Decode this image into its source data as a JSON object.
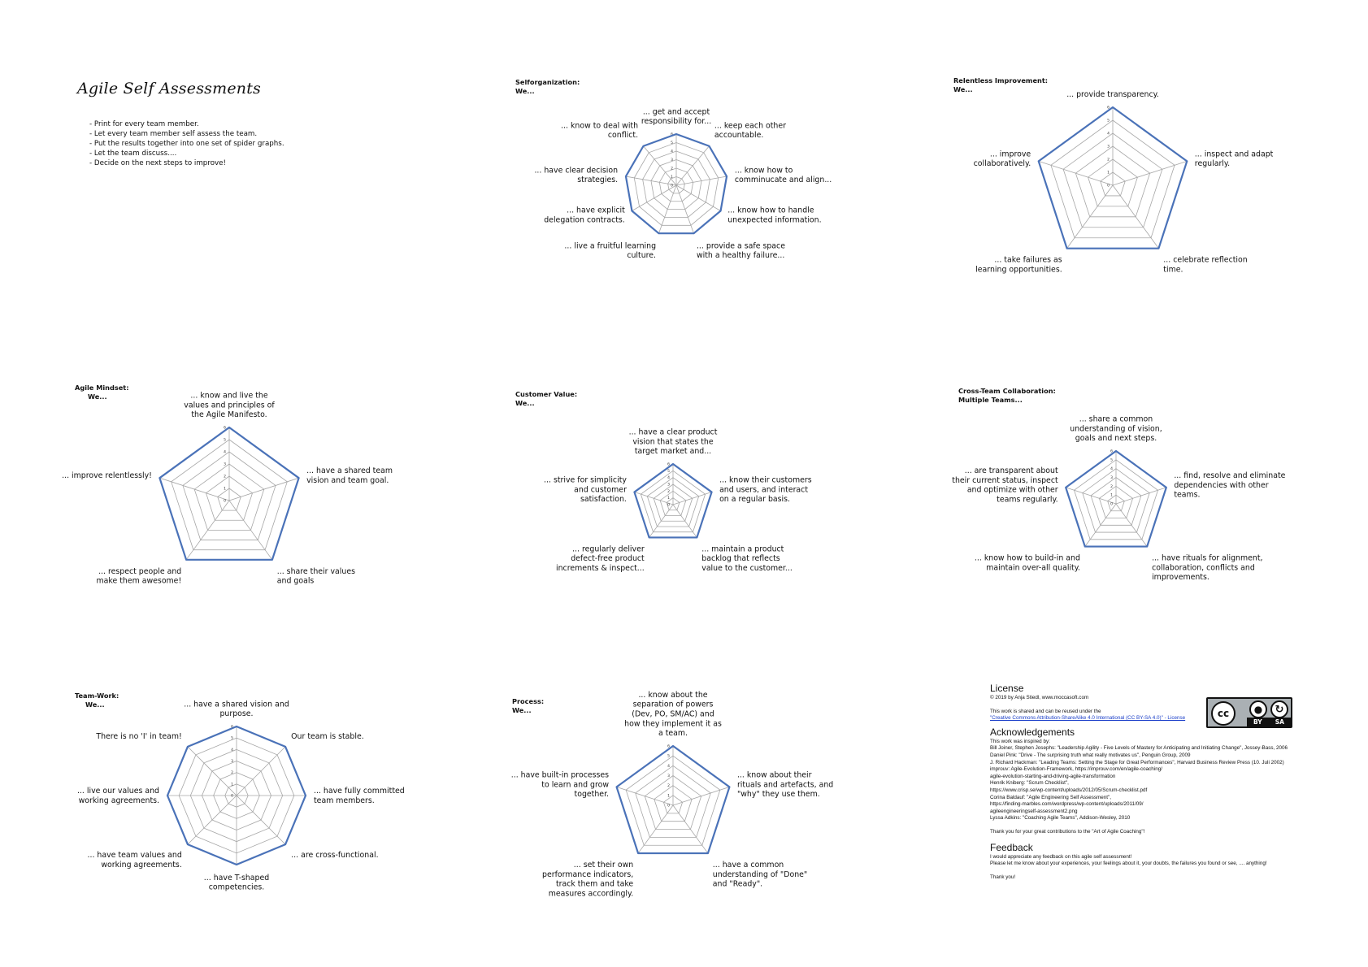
{
  "document": {
    "title": "Agile Self Assessments",
    "instructions": [
      "Print for every team member.",
      "Let every team member self assess the team.",
      "Put the results together into one set of spider graphs.",
      "Let the team discuss....",
      "Decide on the next steps to improve!"
    ]
  },
  "chart_data": [
    {
      "type": "radar",
      "heading": "Selforganization:",
      "subheading": "We...",
      "scale": [
        0,
        6
      ],
      "tick_labels": [
        "0",
        "1",
        "2",
        "3",
        "4",
        "5",
        "6"
      ],
      "axes": [
        "... get and accept\nresponsibility for...",
        "... keep each other\naccountable.",
        "... know how to\ncomminucate and align...",
        "... know how to handle\nunexpected information.",
        "... provide a safe space\nwith a healthy failure...",
        "... live a fruitful learning\nculture.",
        "... have explicit\ndelegation contracts.",
        "... have clear decision\nstrategies.",
        "... know to deal with\nconflict."
      ],
      "values": [
        6,
        6,
        6,
        6,
        6,
        6,
        6,
        6,
        6
      ]
    },
    {
      "type": "radar",
      "heading": "Relentless Improvement:",
      "subheading": "We...",
      "scale": [
        0,
        6
      ],
      "tick_labels": [
        "0",
        "1",
        "2",
        "3",
        "4",
        "5",
        "6"
      ],
      "axes": [
        "... provide transparency.",
        "... inspect and adapt\nregularly.",
        "... celebrate reflection\ntime.",
        "... take failures as\nlearning opportunities.",
        "... improve\ncollaboratively."
      ],
      "values": [
        6,
        6,
        6,
        6,
        6
      ]
    },
    {
      "type": "radar",
      "heading": "Agile Mindset:",
      "subheading": "We...",
      "scale": [
        0,
        6
      ],
      "tick_labels": [
        "0",
        "1",
        "2",
        "3",
        "4",
        "5",
        "6"
      ],
      "axes": [
        "... know and live the\nvalues and principles of\nthe Agile Manifesto.",
        "... have a shared team\nvision and team goal.",
        "... share their values\nand goals",
        "... respect people and\nmake them awesome!",
        "... improve relentlessly!"
      ],
      "values": [
        6,
        6,
        6,
        6,
        6
      ]
    },
    {
      "type": "radar",
      "heading": "Customer Value:",
      "subheading": "We...",
      "scale": [
        0,
        6
      ],
      "tick_labels": [
        "0",
        "1",
        "2",
        "3",
        "4",
        "5",
        "6"
      ],
      "axes": [
        "... have a clear product\nvision that states the\ntarget market and...",
        "... know their customers\nand users, and interact\non a regular basis.",
        "... maintain a product\nbacklog that reflects\nvalue to the customer...",
        "... regularly deliver\ndefect-free product\nincrements & inspect...",
        "... strive for simplicity\nand customer\nsatisfaction."
      ],
      "values": [
        6,
        6,
        6,
        6,
        6
      ]
    },
    {
      "type": "radar",
      "heading": "Cross-Team Collaboration:",
      "subheading": "Multiple Teams...",
      "scale": [
        0,
        6
      ],
      "tick_labels": [
        "0",
        "1",
        "2",
        "3",
        "4",
        "5",
        "6"
      ],
      "axes": [
        "... share a common\nunderstanding of vision,\ngoals and next steps.",
        "... find, resolve and eliminate\ndependencies with other\nteams.",
        "... have rituals for alignment,\ncollaboration, conflicts and\nimprovements.",
        "... know how to build-in and\nmaintain over-all quality.",
        "... are transparent about\ntheir current status, inspect\nand optimize with other\nteams regularly."
      ],
      "values": [
        6,
        6,
        6,
        6,
        6
      ]
    },
    {
      "type": "radar",
      "heading": "Team-Work:",
      "subheading": "We...",
      "scale": [
        0,
        6
      ],
      "tick_labels": [
        "0",
        "1",
        "2",
        "3",
        "4",
        "5",
        "6"
      ],
      "axes": [
        "... have a shared vision and\npurpose.",
        "Our team is stable.",
        "... have fully committed\nteam members.",
        "... are cross-functional.",
        "... have T-shaped\ncompetencies.",
        "... have team values and\nworking agreements.",
        "... live our values and\nworking agreements.",
        "There is no 'I' in team!"
      ],
      "values": [
        6,
        6,
        6,
        6,
        6,
        6,
        6,
        6
      ]
    },
    {
      "type": "radar",
      "heading": "Process:",
      "subheading": "We...",
      "scale": [
        0,
        6
      ],
      "tick_labels": [
        "0",
        "1",
        "2",
        "3",
        "4",
        "5",
        "6"
      ],
      "axes": [
        "... know about the\nseparation of powers\n(Dev, PO, SM/AC) and\nhow they implement it as\na team.",
        "... know about their\nrituals and artefacts, and\n\"why\" they use them.",
        "... have a common\nunderstanding of \"Done\"\nand \"Ready\".",
        "... set their own\nperformance indicators,\ntrack them and take\nmeasures accordingly.",
        "... have built-in processes\nto learn and grow\ntogether."
      ],
      "values": [
        6,
        6,
        6,
        6,
        6
      ]
    }
  ],
  "license": {
    "heading": "License",
    "copyright": "© 2019 by Anja Stiedl, www.moccasoft.com",
    "shared_text": "This work is shared and can be reused under the",
    "link_text": "\"Creative Commons Attribution-ShareAlike 4.0 International (CC BY-SA 4.0)\" - License",
    "badge": {
      "cc": "cc",
      "by": "BY",
      "sa": "SA"
    }
  },
  "acknowledgements": {
    "heading": "Acknowledgements",
    "intro": "This work was inspired by:",
    "lines": [
      "Bill Joiner, Stephen Josephs: \"Leadership Agility - Five Levels of Mastery for Anticipating and Initiating Change\", Jossey-Bass, 2006",
      "Daniel Pink: \"Drive - The surprising truth what really motivates us\", Penguin Group, 2009",
      "J. Richard Hackman: \"Leading Teams: Setting the Stage for Great Performances\", Harvard Business Review Press (10. Juli 2002)",
      "improuv: Agile-Evolution-Framework, https://improuv.com/en/agile-coaching/",
      "agile-evolution-starting-and-driving-agile-transformation",
      "Henrik Kniberg: \"Scrum Checklist\",",
      "https://www.crisp.se/wp-content/uploads/2012/05/Scrum-checklist.pdf",
      "Corina Baldauf: \"Agile Engineering Self Assessment\",",
      "https://finding-marbles.com/wordpress/wp-content/uploads/2011/09/",
      "agileengineeringself-assessment2.png",
      "Lyssa Adkins: \"Coaching Agile Teams\", Addison-Wesley, 2010"
    ],
    "thanks": "Thank you for your great contributions to the \"Art of Agile Coaching\"!"
  },
  "feedback": {
    "heading": "Feedback",
    "lines": [
      "I would appreciate any feedback on this agile self assessment!",
      "Please let me know about your experiences, your feelings about it, your doubts, the failures you found or see, .... anything!"
    ],
    "thanks": "Thank you!"
  }
}
